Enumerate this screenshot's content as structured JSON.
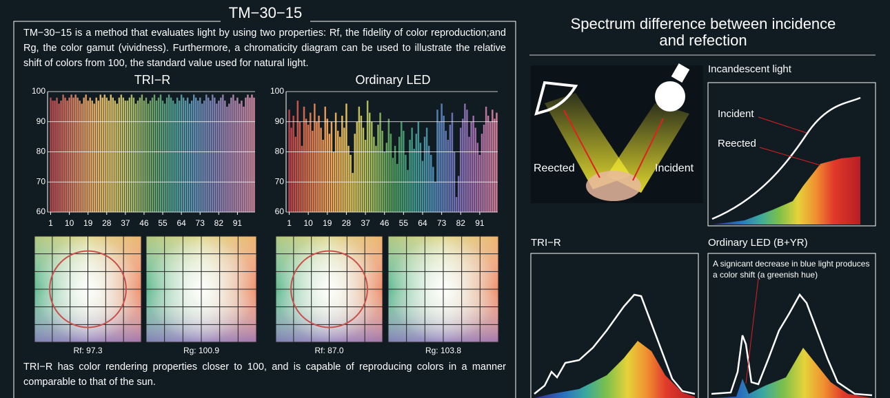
{
  "tm30": {
    "title": "TM−30−15",
    "description": "TM−30−15 is a method that evaluates light by using two properties: Rf, the fidelity of color reproduction;and Rg, the color gamut (vividness). Furthermore, a chromaticity diagram can be used to illustrate the relative shift of colors from 100, the standard value used for natural light.",
    "gamut_labels": [
      "Rf: 97.3",
      "Rg: 100.9",
      "Rf: 87.0",
      "Rg: 103.8"
    ],
    "footer": "TRI−R has color rendering properties closer to 100, and is capable of reproducing colors in a manner comparable to that of the sun."
  },
  "chart_data": [
    {
      "type": "bar",
      "title": "TRI−R",
      "x": [
        1,
        2,
        3,
        4,
        5,
        6,
        7,
        8,
        9,
        10,
        11,
        12,
        13,
        14,
        15,
        16,
        17,
        18,
        19,
        20,
        21,
        22,
        23,
        24,
        25,
        26,
        27,
        28,
        29,
        30,
        31,
        32,
        33,
        34,
        35,
        36,
        37,
        38,
        39,
        40,
        41,
        42,
        43,
        44,
        45,
        46,
        47,
        48,
        49,
        50,
        51,
        52,
        53,
        54,
        55,
        56,
        57,
        58,
        59,
        60,
        61,
        62,
        63,
        64,
        65,
        66,
        67,
        68,
        69,
        70,
        71,
        72,
        73,
        74,
        75,
        76,
        77,
        78,
        79,
        80,
        81,
        82,
        83,
        84,
        85,
        86,
        87,
        88,
        89,
        90,
        91,
        92,
        93,
        94,
        95,
        96,
        97,
        98,
        99
      ],
      "values": [
        98,
        97,
        97,
        98,
        96,
        97,
        99,
        98,
        97,
        98,
        99,
        98,
        99,
        98,
        97,
        96,
        98,
        99,
        97,
        98,
        97,
        96,
        98,
        97,
        99,
        98,
        99,
        98,
        97,
        99,
        98,
        97,
        96,
        98,
        99,
        98,
        97,
        97,
        98,
        99,
        98,
        96,
        97,
        98,
        99,
        97,
        98,
        96,
        97,
        98,
        99,
        97,
        98,
        99,
        97,
        96,
        98,
        99,
        98,
        97,
        96,
        98,
        97,
        99,
        98,
        97,
        98,
        96,
        97,
        99,
        98,
        97,
        98,
        96,
        97,
        99,
        98,
        97,
        99,
        98,
        96,
        97,
        98,
        99,
        97,
        95,
        96,
        98,
        99,
        97,
        98,
        96,
        97,
        95,
        98,
        99,
        98,
        99,
        98
      ],
      "colors": [
        "#b4464e",
        "#cf7a63",
        "#e3a966",
        "#d9c06a",
        "#a7b86a",
        "#6a9f66",
        "#4f9a8c",
        "#5c8fb0",
        "#7c7fb2",
        "#a681aa",
        "#cf8aa0"
      ],
      "xlim": [
        0.5,
        99.5
      ],
      "xticks": [
        1,
        10,
        19,
        28,
        37,
        46,
        55,
        64,
        73,
        82,
        91
      ],
      "ylim": [
        60,
        100
      ],
      "yticks": [
        60,
        70,
        80,
        90,
        100
      ],
      "grid": true
    },
    {
      "type": "bar",
      "title": "Ordinary LED",
      "x": [
        1,
        2,
        3,
        4,
        5,
        6,
        7,
        8,
        9,
        10,
        11,
        12,
        13,
        14,
        15,
        16,
        17,
        18,
        19,
        20,
        21,
        22,
        23,
        24,
        25,
        26,
        27,
        28,
        29,
        30,
        31,
        32,
        33,
        34,
        35,
        36,
        37,
        38,
        39,
        40,
        41,
        42,
        43,
        44,
        45,
        46,
        47,
        48,
        49,
        50,
        51,
        52,
        53,
        54,
        55,
        56,
        57,
        58,
        59,
        60,
        61,
        62,
        63,
        64,
        65,
        66,
        67,
        68,
        69,
        70,
        71,
        72,
        73,
        74,
        75,
        76,
        77,
        78,
        79,
        80,
        81,
        82,
        83,
        84,
        85,
        86,
        87,
        88,
        89,
        90,
        91,
        92,
        93,
        94,
        95,
        96,
        97,
        98,
        99
      ],
      "values": [
        94,
        88,
        92,
        85,
        97,
        90,
        82,
        95,
        91,
        89,
        93,
        87,
        96,
        90,
        92,
        88,
        84,
        95,
        91,
        86,
        90,
        80,
        93,
        87,
        85,
        92,
        88,
        96,
        82,
        79,
        73,
        86,
        90,
        95,
        92,
        88,
        84,
        97,
        93,
        90,
        85,
        82,
        89,
        93,
        87,
        80,
        83,
        91,
        86,
        78,
        82,
        76,
        85,
        90,
        87,
        79,
        74,
        84,
        88,
        81,
        86,
        90,
        83,
        77,
        85,
        88,
        82,
        79,
        75,
        70,
        94,
        90,
        96,
        92,
        87,
        84,
        89,
        93,
        80,
        65,
        72,
        88,
        91,
        96,
        94,
        85,
        90,
        92,
        88,
        83,
        79,
        86,
        89,
        95,
        92,
        90,
        94,
        91,
        93
      ],
      "colors": [
        "#b8404a",
        "#d9774f",
        "#eba45a",
        "#dcc15c",
        "#9fb85c",
        "#4f9a5c",
        "#3f9687",
        "#4f86b2",
        "#6f6fb4",
        "#a06ca8",
        "#d07e98"
      ],
      "xlim": [
        0.5,
        99.5
      ],
      "xticks": [
        1,
        10,
        19,
        28,
        37,
        46,
        55,
        64,
        73,
        82,
        91
      ],
      "ylim": [
        60,
        100
      ],
      "yticks": [
        60,
        70,
        80,
        90,
        100
      ],
      "grid": true
    }
  ],
  "spectrum": {
    "title": "Spectrum difference between incidence and refection",
    "illustration_reflected": "Reected",
    "illustration_incident": "Incident",
    "incandescent_title": "Incandescent light",
    "incandescent_incident": "Incident",
    "incandescent_reflected": "Reected",
    "trir_title": "TRI−R",
    "led_title": "Ordinary LED (B+YR)",
    "led_note": "A signicant decrease in blue light produces a color shift (a greenish hue)"
  }
}
